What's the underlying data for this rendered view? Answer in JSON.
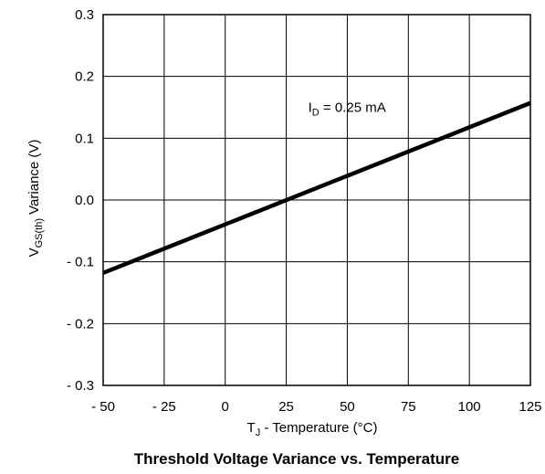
{
  "chart_data": {
    "type": "line",
    "title": "Threshold Voltage Variance vs. Temperature",
    "xlabel": {
      "main": "T",
      "sub": "J",
      "rest": " - Temperature (°C)"
    },
    "ylabel": {
      "main": "V",
      "sub": "GS(th)",
      "rest": "  Variance (V)"
    },
    "xlim": [
      -50,
      125
    ],
    "ylim": [
      -0.3,
      0.3
    ],
    "xticks": [
      -50,
      -25,
      0,
      25,
      50,
      75,
      100,
      125
    ],
    "xtick_labels": [
      "- 50",
      "- 25",
      "0",
      "25",
      "50",
      "75",
      "100",
      "125"
    ],
    "yticks": [
      0.3,
      0.2,
      0.1,
      0.0,
      -0.1,
      -0.2,
      -0.3
    ],
    "ytick_labels": [
      "0.3",
      "0.2",
      "0.1",
      "0.0",
      "- 0.1",
      "- 0.2",
      "- 0.3"
    ],
    "grid": true,
    "series": [
      {
        "name": "",
        "x": [
          -50,
          125
        ],
        "y": [
          -0.118,
          0.157
        ],
        "color": "#000000"
      }
    ],
    "annotations": [
      {
        "main": "I",
        "sub": "D",
        "rest": " = 0.25 mA",
        "x": 34,
        "y": 0.137
      }
    ]
  }
}
